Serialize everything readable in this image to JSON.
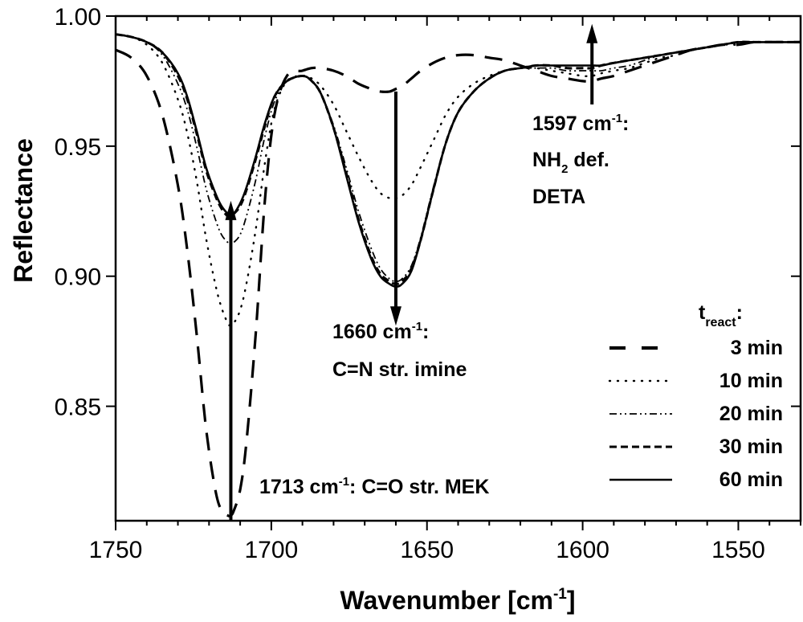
{
  "chart_data": {
    "type": "line",
    "title": "",
    "xlabel": "Wavenumber [cm",
    "xlabel_sup": "-1",
    "xlabel_end": "]",
    "ylabel": "Reflectance",
    "xlim": [
      1750,
      1530
    ],
    "ylim": [
      0.806,
      1.0
    ],
    "x_reversed": true,
    "x_ticks": [
      1750,
      1700,
      1650,
      1600,
      1550
    ],
    "x_tick_labels": [
      "1750",
      "1700",
      "1650",
      "1600",
      "1550"
    ],
    "x_minor_step": 10,
    "y_ticks": [
      0.85,
      0.9,
      0.95,
      1.0
    ],
    "y_tick_labels": [
      "0.85",
      "0.90",
      "0.95",
      "1.00"
    ],
    "grid": false,
    "legend": {
      "title_main": "t",
      "title_sub": "react",
      "title_end": ":",
      "placement": "right"
    },
    "x": [
      1750,
      1745,
      1740,
      1735,
      1730,
      1727,
      1724,
      1721,
      1718,
      1716,
      1714,
      1713,
      1712,
      1710,
      1708,
      1705,
      1702,
      1699,
      1695,
      1690,
      1687,
      1684,
      1680,
      1676,
      1672,
      1668,
      1665,
      1662,
      1660,
      1658,
      1655,
      1652,
      1648,
      1644,
      1640,
      1635,
      1630,
      1625,
      1620,
      1615,
      1610,
      1605,
      1600,
      1597,
      1594,
      1590,
      1585,
      1580,
      1575,
      1570,
      1565,
      1560,
      1555,
      1550,
      1545,
      1540,
      1535,
      1530
    ],
    "series": [
      {
        "name": "3 min",
        "style": "long-dash",
        "values": [
          0.987,
          0.984,
          0.977,
          0.962,
          0.935,
          0.91,
          0.878,
          0.842,
          0.818,
          0.81,
          0.808,
          0.808,
          0.81,
          0.818,
          0.836,
          0.878,
          0.93,
          0.962,
          0.977,
          0.979,
          0.98,
          0.98,
          0.979,
          0.977,
          0.974,
          0.972,
          0.971,
          0.971,
          0.972,
          0.973,
          0.976,
          0.979,
          0.982,
          0.984,
          0.985,
          0.985,
          0.984,
          0.983,
          0.981,
          0.979,
          0.977,
          0.976,
          0.975,
          0.975,
          0.976,
          0.977,
          0.979,
          0.981,
          0.983,
          0.985,
          0.987,
          0.988,
          0.989,
          0.989,
          0.99,
          0.99,
          0.99,
          0.99
        ]
      },
      {
        "name": "10 min",
        "style": "dotted",
        "values": [
          0.993,
          0.992,
          0.989,
          0.982,
          0.968,
          0.955,
          0.937,
          0.915,
          0.897,
          0.888,
          0.882,
          0.881,
          0.882,
          0.887,
          0.897,
          0.918,
          0.944,
          0.964,
          0.975,
          0.977,
          0.976,
          0.973,
          0.966,
          0.956,
          0.946,
          0.937,
          0.932,
          0.93,
          0.93,
          0.931,
          0.935,
          0.942,
          0.952,
          0.962,
          0.969,
          0.974,
          0.977,
          0.979,
          0.98,
          0.98,
          0.979,
          0.978,
          0.977,
          0.977,
          0.978,
          0.979,
          0.98,
          0.982,
          0.984,
          0.985,
          0.987,
          0.988,
          0.989,
          0.989,
          0.99,
          0.99,
          0.99,
          0.99
        ]
      },
      {
        "name": "20 min",
        "style": "dash-dot-dot",
        "values": [
          0.993,
          0.992,
          0.99,
          0.985,
          0.974,
          0.964,
          0.95,
          0.934,
          0.922,
          0.916,
          0.913,
          0.912,
          0.913,
          0.916,
          0.923,
          0.937,
          0.954,
          0.967,
          0.975,
          0.977,
          0.975,
          0.97,
          0.958,
          0.942,
          0.925,
          0.911,
          0.903,
          0.899,
          0.898,
          0.899,
          0.904,
          0.915,
          0.934,
          0.951,
          0.963,
          0.971,
          0.976,
          0.979,
          0.98,
          0.98,
          0.98,
          0.979,
          0.979,
          0.979,
          0.979,
          0.98,
          0.981,
          0.983,
          0.985,
          0.986,
          0.987,
          0.988,
          0.989,
          0.99,
          0.99,
          0.99,
          0.99,
          0.99
        ]
      },
      {
        "name": "30 min",
        "style": "short-dash",
        "values": [
          0.993,
          0.992,
          0.99,
          0.986,
          0.977,
          0.968,
          0.955,
          0.941,
          0.931,
          0.926,
          0.923,
          0.923,
          0.924,
          0.927,
          0.933,
          0.945,
          0.958,
          0.969,
          0.975,
          0.977,
          0.975,
          0.97,
          0.957,
          0.94,
          0.922,
          0.908,
          0.901,
          0.898,
          0.897,
          0.898,
          0.903,
          0.914,
          0.933,
          0.951,
          0.963,
          0.971,
          0.976,
          0.979,
          0.98,
          0.981,
          0.981,
          0.98,
          0.98,
          0.98,
          0.981,
          0.982,
          0.983,
          0.984,
          0.985,
          0.986,
          0.987,
          0.988,
          0.989,
          0.99,
          0.99,
          0.99,
          0.99,
          0.99
        ]
      },
      {
        "name": "60 min",
        "style": "solid",
        "values": [
          0.993,
          0.992,
          0.99,
          0.986,
          0.978,
          0.969,
          0.956,
          0.942,
          0.932,
          0.927,
          0.924,
          0.923,
          0.924,
          0.928,
          0.934,
          0.946,
          0.959,
          0.969,
          0.975,
          0.977,
          0.975,
          0.97,
          0.957,
          0.939,
          0.921,
          0.907,
          0.9,
          0.897,
          0.896,
          0.897,
          0.902,
          0.914,
          0.933,
          0.951,
          0.963,
          0.971,
          0.976,
          0.979,
          0.98,
          0.981,
          0.981,
          0.981,
          0.981,
          0.981,
          0.981,
          0.982,
          0.983,
          0.984,
          0.985,
          0.986,
          0.987,
          0.988,
          0.989,
          0.99,
          0.99,
          0.99,
          0.99,
          0.99
        ]
      }
    ],
    "annotations": [
      {
        "id": "imine",
        "x": 1660,
        "arrow_from": 0.971,
        "arrow_to": 0.881,
        "direction": "down",
        "line1_main": "1660 cm",
        "line1_sup": "-1",
        "line1_end": ":",
        "line2": "C=N str. imine"
      },
      {
        "id": "mek",
        "x": 1713,
        "arrow_from": 0.806,
        "arrow_to": 0.929,
        "direction": "up",
        "line1_main": "1713 cm",
        "line1_sup": "-1",
        "line1_end": ": C=O str. MEK"
      },
      {
        "id": "deta",
        "x": 1597,
        "arrow_from": 0.966,
        "arrow_to": 0.997,
        "direction": "up",
        "line1_main": "1597 cm",
        "line1_sup": "-1",
        "line1_end": ":",
        "line2_main": "NH",
        "line2_sub": "2",
        "line2_end": " def.",
        "line3": "DETA"
      }
    ]
  }
}
